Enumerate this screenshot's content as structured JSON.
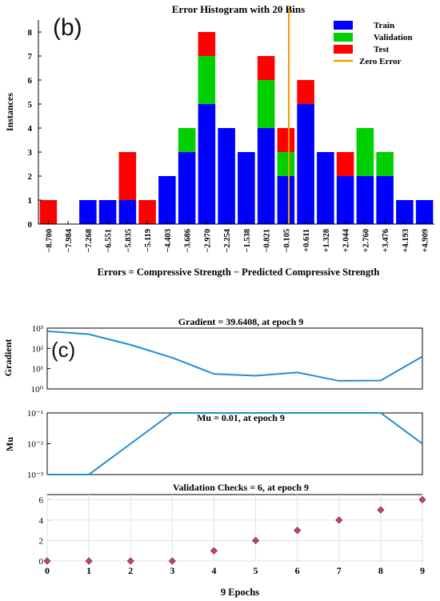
{
  "colors": {
    "train": "#0000ff",
    "validation": "#00d000",
    "test": "#ff0000",
    "zero_error": "#f0a000",
    "line": "#1f8fd4",
    "marker_fill": "#e8365a",
    "marker_edge": "#444444"
  },
  "chart_data": [
    {
      "type": "bar",
      "panel_label": "(b)",
      "title": "Error Histogram with 20 Bins",
      "xlabel": "Errors = Compressive Strength − Predicted Compressive Strength",
      "ylabel": "Instances",
      "ylim": [
        0,
        8.5
      ],
      "yticks": [
        "0",
        "1",
        "2",
        "3",
        "4",
        "5",
        "6",
        "7",
        "8"
      ],
      "categories": [
        "−8.700",
        "−7.984",
        "−7.268",
        "−6.551",
        "−5.835",
        "−5.119",
        "−4.403",
        "−3.686",
        "−2.970",
        "−2.254",
        "−1.538",
        "−0.821",
        "−0.105",
        "+0.611",
        "+1.328",
        "+2.044",
        "+2.760",
        "+3.476",
        "+4.193",
        "+4.909"
      ],
      "series": [
        {
          "name": "Train",
          "values": [
            0,
            0,
            1,
            1,
            1,
            0,
            2,
            3,
            5,
            4,
            3,
            4,
            2,
            5,
            3,
            2,
            2,
            2,
            1,
            1
          ]
        },
        {
          "name": "Validation",
          "values": [
            0,
            0,
            0,
            0,
            0,
            0,
            0,
            1,
            2,
            0,
            0,
            2,
            1,
            0,
            0,
            0,
            2,
            1,
            0,
            0
          ]
        },
        {
          "name": "Test",
          "values": [
            1,
            0,
            0,
            0,
            2,
            1,
            0,
            0,
            1,
            0,
            0,
            1,
            1,
            1,
            0,
            1,
            0,
            0,
            0,
            0
          ]
        }
      ],
      "zero_error": {
        "name": "Zero Error",
        "x": 0
      },
      "legend": "top-right",
      "grid": false
    },
    {
      "type": "line",
      "panel_label": "(c)",
      "title": "Gradient = 39.6408, at epoch 9",
      "ylabel": "Gradient",
      "yscale": "log",
      "yticks": [
        "10⁰",
        "10¹",
        "10²",
        "10³"
      ],
      "ylim": [
        1,
        1000
      ],
      "x": [
        0,
        1,
        2,
        3,
        4,
        5,
        6,
        7,
        8,
        9
      ],
      "values": [
        700,
        500,
        150,
        35,
        5.5,
        4.5,
        6.5,
        2.5,
        2.6,
        39.6408
      ]
    },
    {
      "type": "line",
      "title": "Mu = 0.01, at epoch 9",
      "ylabel": "Mu",
      "yscale": "log",
      "yticks": [
        "10⁻³",
        "10⁻²",
        "10⁻¹"
      ],
      "ylim": [
        0.001,
        0.1
      ],
      "x": [
        0,
        1,
        2,
        3,
        4,
        5,
        6,
        7,
        8,
        9
      ],
      "values": [
        0.001,
        0.001,
        0.01,
        0.1,
        0.1,
        0.1,
        0.1,
        0.1,
        0.1,
        0.01
      ]
    },
    {
      "type": "scatter",
      "title": "Validation Checks = 6, at epoch 9",
      "ylabel": "Validation Checks",
      "ylim": [
        0,
        6.5
      ],
      "yticks": [
        "0",
        "2",
        "4",
        "6"
      ],
      "xlabel": "9 Epochs",
      "xticks": [
        "0",
        "1",
        "2",
        "3",
        "4",
        "5",
        "6",
        "7",
        "8",
        "9"
      ],
      "x": [
        0,
        1,
        2,
        3,
        4,
        5,
        6,
        7,
        8,
        9
      ],
      "values": [
        0,
        0,
        0,
        0,
        1,
        2,
        3,
        4,
        5,
        6
      ]
    }
  ]
}
